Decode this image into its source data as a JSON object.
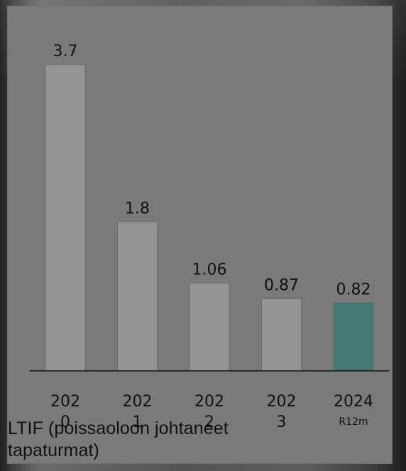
{
  "chart_data": {
    "type": "bar",
    "categories": [
      {
        "line1": "202",
        "line2": "0"
      },
      {
        "line1": "202",
        "line2": "1"
      },
      {
        "line1": "202",
        "line2": "2"
      },
      {
        "line1": "202",
        "line2": "3"
      },
      {
        "line1": "2024",
        "line2": "R12m"
      }
    ],
    "values": [
      3.7,
      1.8,
      1.06,
      0.87,
      0.82
    ],
    "value_labels": [
      "3.7",
      "1.8",
      "1.06",
      "0.87",
      "0.82"
    ],
    "bar_colors": [
      "#949494",
      "#949494",
      "#949494",
      "#949494",
      "#437A76"
    ],
    "ylim": [
      0,
      3.7
    ],
    "grid": false,
    "legend": "none"
  },
  "caption": {
    "text": "LTIF (poissaoloon johtaneet tapaturmat)"
  }
}
